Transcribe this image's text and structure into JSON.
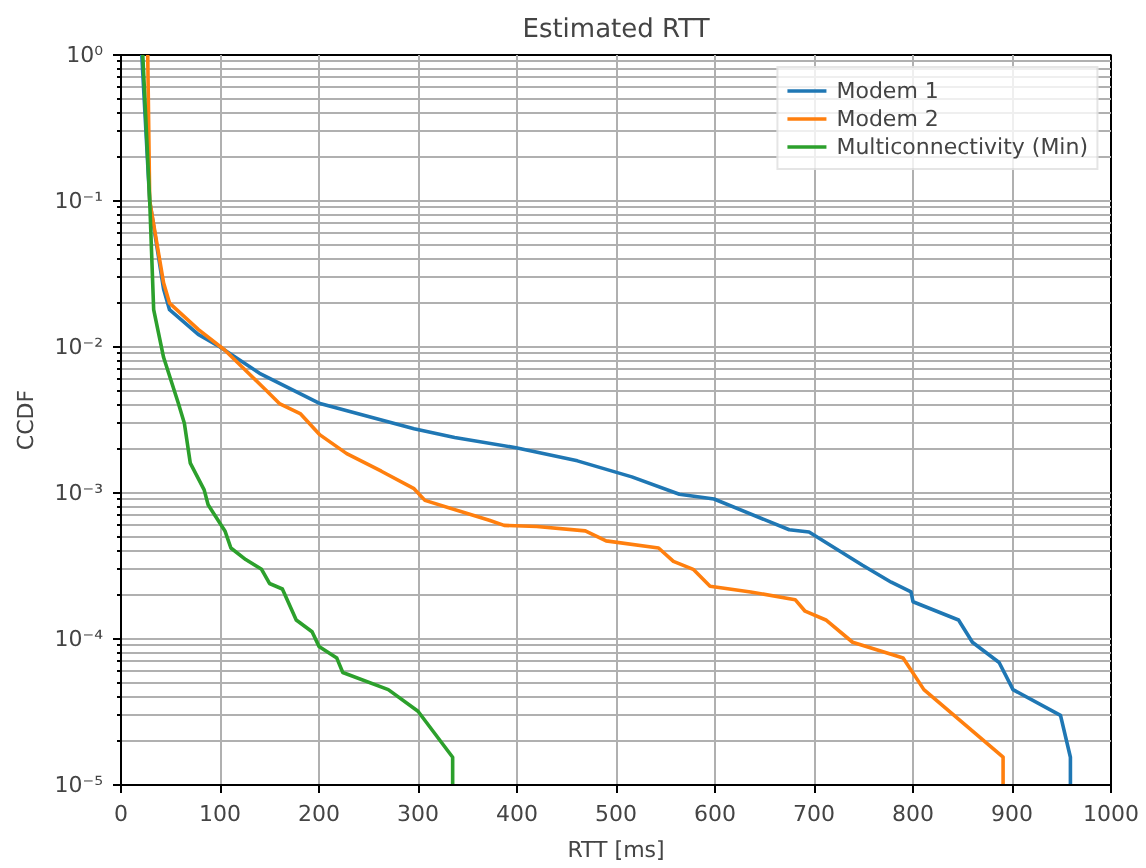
{
  "chart_data": {
    "type": "line",
    "title": "Estimated RTT",
    "xlabel": "RTT [ms]",
    "ylabel": "CCDF",
    "log": "y",
    "grid": true,
    "legend": "top right",
    "line_style": "solid",
    "marker": "none",
    "xlim": [
      0,
      1000
    ],
    "xticks": [
      0,
      100,
      200,
      300,
      400,
      500,
      600,
      700,
      800,
      900,
      1000
    ],
    "ylim": [
      1e-05,
      1
    ],
    "yticks": [
      {
        "value": 1e-05,
        "label": "10⁻⁵"
      },
      {
        "value": 0.0001,
        "label": "10⁻⁴"
      },
      {
        "value": 0.001,
        "label": "10⁻³"
      },
      {
        "value": 0.01,
        "label": "10⁻²"
      },
      {
        "value": 0.1,
        "label": "10⁻¹"
      },
      {
        "value": 1,
        "label": "10⁰"
      }
    ],
    "series": [
      {
        "name": "Modem 1",
        "color": "#1f77b4",
        "x": [
          21,
          29,
          43,
          49,
          78,
          100,
          140,
          201,
          296,
          337,
          399,
          461,
          516,
          564,
          599,
          675,
          695,
          749,
          778,
          798,
          800,
          846,
          860,
          887,
          901,
          949,
          959,
          959
        ],
        "values": [
          1,
          0.1,
          0.025,
          0.018,
          0.0122,
          0.01,
          0.0066,
          0.0041,
          0.00275,
          0.0024,
          0.00204,
          0.00166,
          0.00129,
          0.00098,
          0.00091,
          0.00056,
          0.00054,
          0.00032,
          0.000245,
          0.00021,
          0.00018,
          0.000135,
          9.5e-05,
          6.9e-05,
          4.5e-05,
          3e-05,
          1.55e-05,
          1e-05
        ]
      },
      {
        "name": "Modem 2",
        "color": "#ff7f0e",
        "x": [
          27,
          29,
          43,
          49,
          78,
          105,
          146,
          160,
          181,
          201,
          228,
          263,
          296,
          307,
          372,
          387,
          420,
          469,
          490,
          543,
          558,
          578,
          595,
          636,
          681,
          691,
          712,
          739,
          790,
          811,
          891,
          891
        ],
        "values": [
          1,
          0.1,
          0.0275,
          0.02,
          0.0132,
          0.0095,
          0.0051,
          0.0041,
          0.0035,
          0.0025,
          0.00186,
          0.00141,
          0.00107,
          0.00089,
          0.00065,
          0.0006,
          0.00059,
          0.00055,
          0.00047,
          0.00042,
          0.00034,
          0.0003,
          0.00023,
          0.00021,
          0.000186,
          0.000155,
          0.000135,
          9.5e-05,
          7.4e-05,
          4.5e-05,
          1.55e-05,
          1e-05
        ]
      },
      {
        "name": "Multiconnectivity (Min)",
        "color": "#2ca02c",
        "x": [
          22,
          29,
          33,
          43,
          58,
          64,
          70,
          84,
          88,
          105,
          111,
          126,
          142,
          150,
          163,
          177,
          193,
          200,
          218,
          224,
          270,
          300,
          335,
          335
        ],
        "values": [
          1,
          0.1,
          0.018,
          0.0085,
          0.0041,
          0.003,
          0.0016,
          0.00105,
          0.00083,
          0.00055,
          0.00042,
          0.00035,
          0.0003,
          0.00024,
          0.00022,
          0.000135,
          0.000112,
          8.9e-05,
          7.4e-05,
          5.9e-05,
          4.5e-05,
          3.2e-05,
          1.55e-05,
          1e-05
        ]
      }
    ]
  }
}
